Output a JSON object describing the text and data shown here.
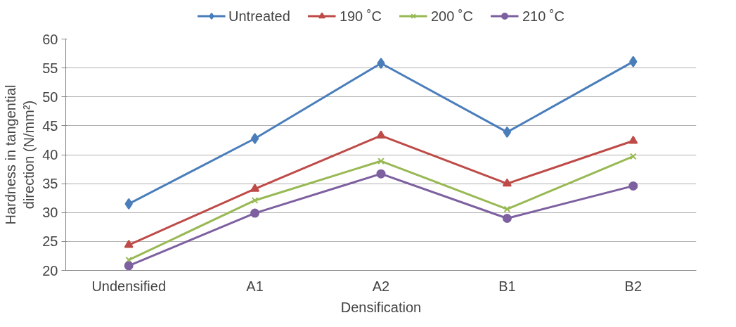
{
  "chart_data": {
    "type": "line",
    "xlabel": "Densification",
    "ylabel": "Hardness in tangential\ndirection (N/mm²)",
    "categories": [
      "Undensified",
      "A1",
      "A2",
      "B1",
      "B2"
    ],
    "series": [
      {
        "name": "Untreated",
        "color": "#4a7ebb",
        "marker": "diamond",
        "values": [
          31.5,
          42.8,
          55.8,
          43.9,
          56.1
        ]
      },
      {
        "name": "190 ˚C",
        "color": "#be4b48",
        "marker": "triangle",
        "values": [
          24.4,
          34.1,
          43.3,
          35.0,
          42.4
        ]
      },
      {
        "name": "200 ˚C",
        "color": "#98b954",
        "marker": "cross",
        "values": [
          21.8,
          32.1,
          38.9,
          30.6,
          39.7
        ]
      },
      {
        "name": "210 ˚C",
        "color": "#7d60a0",
        "marker": "circle",
        "values": [
          20.8,
          29.9,
          36.7,
          29.0,
          34.6
        ]
      }
    ],
    "ylim": [
      20,
      60
    ],
    "yticks": [
      20,
      25,
      30,
      35,
      40,
      45,
      50,
      55,
      60
    ],
    "grid": "y",
    "legend": "top",
    "line_style": "solid"
  }
}
